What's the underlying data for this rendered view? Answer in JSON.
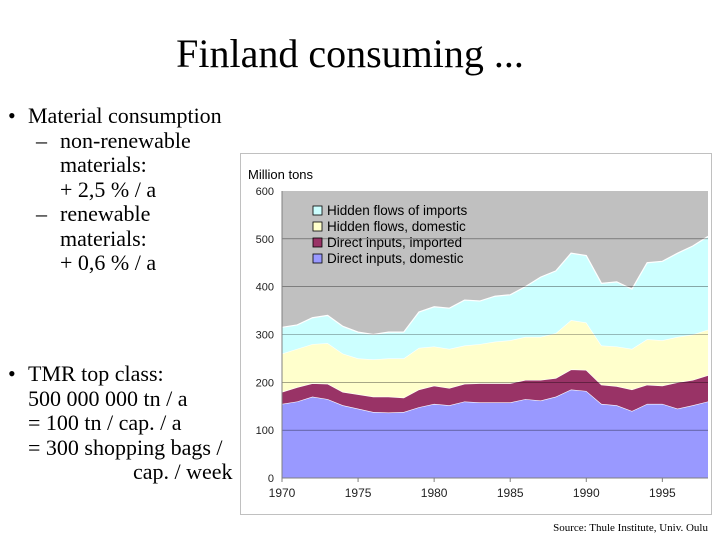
{
  "slide": {
    "title": "Finland consuming ...",
    "bullets": {
      "b1_main": "Material consumption",
      "b1_sub1_line1": "non-renewable",
      "b1_sub1_line2": "materials:",
      "b1_sub1_line3": "+ 2,5 % / a",
      "b1_sub2_line1": "renewable",
      "b1_sub2_line2": "materials:",
      "b1_sub2_line3": "+ 0,6 % / a",
      "b2_line1": "TMR top class:",
      "b2_line2": "500 000 000 tn / a",
      "b2_line3": "= 100 tn / cap. / a",
      "b2_line4": "= 300 shopping bags /",
      "b2_line5": "cap. / week"
    },
    "source": "Source: Thule Institute, Univ. Oulu",
    "bullet_glyph": "•",
    "dash_glyph": "–"
  },
  "chart_data": {
    "type": "area",
    "stacked": true,
    "ylabel": "Million tons",
    "ylim": [
      0,
      600
    ],
    "yticks": [
      0,
      100,
      200,
      300,
      400,
      500,
      600
    ],
    "xticks": [
      1970,
      1975,
      1980,
      1985,
      1990,
      1995
    ],
    "x": [
      1970,
      1971,
      1972,
      1973,
      1974,
      1975,
      1976,
      1977,
      1978,
      1979,
      1980,
      1981,
      1982,
      1983,
      1984,
      1985,
      1986,
      1987,
      1988,
      1989,
      1990,
      1991,
      1992,
      1993,
      1994,
      1995,
      1996,
      1997,
      1998
    ],
    "legend": [
      "Hidden flows of imports",
      "Hidden flows, domestic",
      "Direct inputs, imported",
      "Direct inputs, domestic"
    ],
    "series": [
      {
        "name": "Direct inputs, domestic",
        "color": "#9999ff",
        "values": [
          155,
          160,
          170,
          165,
          152,
          145,
          138,
          137,
          138,
          148,
          155,
          152,
          160,
          158,
          158,
          158,
          165,
          162,
          170,
          185,
          182,
          155,
          152,
          140,
          155,
          155,
          145,
          152,
          160
        ]
      },
      {
        "name": "Direct inputs, imported",
        "color": "#993366",
        "values": [
          25,
          30,
          28,
          32,
          28,
          30,
          32,
          33,
          30,
          37,
          38,
          36,
          37,
          40,
          40,
          40,
          40,
          43,
          39,
          42,
          44,
          40,
          40,
          45,
          40,
          38,
          55,
          53,
          55
        ]
      },
      {
        "name": "Hidden flows, domestic",
        "color": "#ffffcc",
        "values": [
          80,
          80,
          82,
          85,
          80,
          75,
          78,
          80,
          82,
          87,
          82,
          82,
          80,
          82,
          87,
          90,
          90,
          90,
          94,
          103,
          99,
          82,
          83,
          85,
          95,
          95,
          95,
          95,
          95
        ]
      },
      {
        "name": "Hidden flows of imports",
        "color": "#ccffff",
        "values": [
          55,
          50,
          55,
          58,
          57,
          55,
          52,
          55,
          55,
          75,
          83,
          85,
          95,
          90,
          95,
          95,
          105,
          125,
          130,
          140,
          140,
          130,
          135,
          125,
          160,
          165,
          175,
          185,
          195
        ]
      }
    ]
  }
}
